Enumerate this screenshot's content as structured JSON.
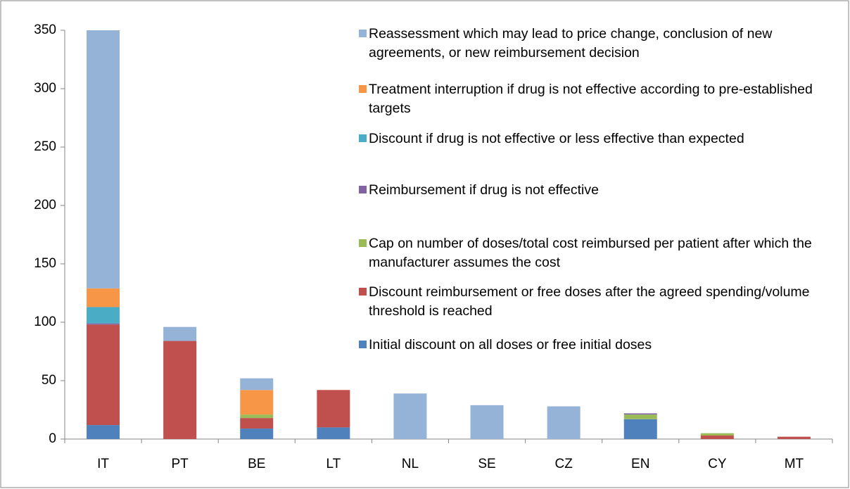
{
  "chart_data": {
    "type": "stacked_bar",
    "categories": [
      "IT",
      "PT",
      "BE",
      "LT",
      "NL",
      "SE",
      "CZ",
      "EN",
      "CY",
      "MT"
    ],
    "series": [
      {
        "name": "Initial discount on all doses or free initial doses",
        "color": "#4f81bd",
        "values": [
          12,
          0,
          9,
          10,
          0,
          0,
          0,
          17,
          0,
          0
        ]
      },
      {
        "name": "Discount reimbursement or free doses after the agreed spending/volume threshold is reached",
        "color": "#c0504d",
        "values": [
          86,
          84,
          9,
          32,
          0,
          0,
          0,
          0,
          3,
          2
        ]
      },
      {
        "name": "Cap on number of doses/total cost reimbursed per patient after which the manufacturer assumes the cost",
        "color": "#9bbb59",
        "values": [
          0,
          0,
          3,
          0,
          0,
          0,
          0,
          4,
          2,
          0
        ]
      },
      {
        "name": "Reimbursement if drug is not effective",
        "color": "#8064a2",
        "values": [
          1,
          0,
          0,
          0,
          0,
          0,
          0,
          1,
          0,
          0
        ]
      },
      {
        "name": "Discount if drug is not effective or less effective than expected",
        "color": "#4bacc6",
        "values": [
          14,
          0,
          0,
          0,
          0,
          0,
          0,
          0,
          0,
          0
        ]
      },
      {
        "name": "Treatment interruption if drug is not effective according to pre-established targets",
        "color": "#f79646",
        "values": [
          16,
          0,
          21,
          0,
          0,
          0,
          0,
          0,
          0,
          0
        ]
      },
      {
        "name": "Reassessment which may lead to price change, conclusion of new agreements, or new reimbursement decision",
        "color": "#95b3d7",
        "values": [
          221,
          12,
          10,
          0,
          39,
          29,
          28,
          0,
          0,
          0
        ]
      }
    ],
    "ylim": [
      0,
      350
    ],
    "yticks": [
      0,
      50,
      100,
      150,
      200,
      250,
      300,
      350
    ],
    "legend": "top-right"
  }
}
